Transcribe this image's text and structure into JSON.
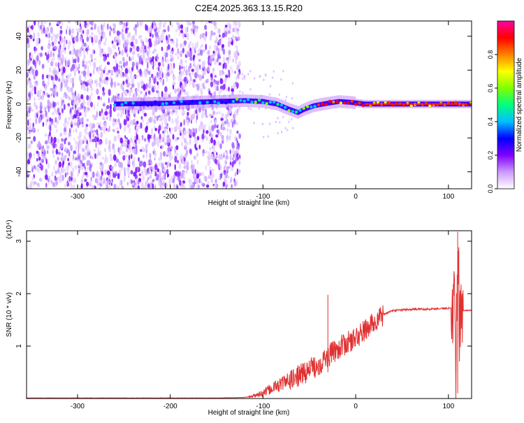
{
  "title": "C2E4.2025.363.13.15.R20",
  "chart_data": [
    {
      "type": "heatmap",
      "name": "spectrogram",
      "xlabel": "Height of straight line (km)",
      "ylabel": "Frequency (Hz)",
      "xlim": [
        -355,
        125
      ],
      "ylim": [
        -50,
        49
      ],
      "xticks": [
        -300,
        -200,
        -100,
        0,
        100
      ],
      "xtick_labels": [
        "-300",
        "-200",
        "-100",
        "0",
        "100"
      ],
      "yticks": [
        -40,
        -20,
        0,
        20,
        40
      ],
      "ytick_labels": [
        "-40",
        "-20",
        "0",
        "20",
        "40"
      ],
      "colorbar": {
        "label": "Normalized spectral amplitude",
        "range": [
          0,
          1
        ],
        "ticks": [
          0.0,
          0.2,
          0.4,
          0.6,
          0.8
        ],
        "tick_labels": [
          "0.0",
          "0.2",
          "0.4",
          "0.6",
          "0.8"
        ],
        "colormap": [
          "#ffffff",
          "#cc99ff",
          "#8000ff",
          "#0000ff",
          "#00bfff",
          "#00ff80",
          "#80ff00",
          "#ffff00",
          "#ff8000",
          "#ff0000",
          "#ff00a0"
        ]
      },
      "noise_region": {
        "x_from": -355,
        "x_to": -125
      },
      "ridge": [
        {
          "x": -260,
          "f": 0
        },
        {
          "x": -200,
          "f": 0.5
        },
        {
          "x": -150,
          "f": 1.5
        },
        {
          "x": -120,
          "f": 2
        },
        {
          "x": -100,
          "f": 1.5
        },
        {
          "x": -85,
          "f": 0
        },
        {
          "x": -72,
          "f": -3
        },
        {
          "x": -62,
          "f": -5
        },
        {
          "x": -55,
          "f": -3
        },
        {
          "x": -45,
          "f": -1
        },
        {
          "x": -30,
          "f": 0.5
        },
        {
          "x": -18,
          "f": 1.5
        },
        {
          "x": -5,
          "f": 1
        },
        {
          "x": 10,
          "f": 0
        },
        {
          "x": 50,
          "f": 0
        },
        {
          "x": 125,
          "f": 0
        }
      ]
    },
    {
      "type": "line",
      "name": "snr",
      "xlabel": "Height of straight line (km)",
      "ylabel": "SNR (10 * v/v)",
      "multiplier": "(x10⁴)",
      "xlim": [
        -355,
        125
      ],
      "ylim": [
        0,
        3.2
      ],
      "xticks": [
        -300,
        -200,
        -100,
        0,
        100
      ],
      "xtick_labels": [
        "-300",
        "-200",
        "-100",
        "0",
        "100"
      ],
      "yticks": [
        1,
        2,
        3
      ],
      "ytick_labels": [
        "1",
        "2",
        "3"
      ],
      "line_color": "#e03030",
      "series": [
        {
          "name": "SNR",
          "x": [
            -355,
            -300,
            -200,
            -150,
            -120,
            -110,
            -100,
            -90,
            -80,
            -70,
            -60,
            -50,
            -40,
            -30,
            -20,
            -10,
            0,
            10,
            20,
            30,
            40,
            60,
            80,
            100,
            104,
            106,
            108,
            110,
            112,
            115,
            125
          ],
          "y": [
            0.01,
            0.01,
            0.01,
            0.01,
            0.02,
            0.05,
            0.1,
            0.2,
            0.28,
            0.35,
            0.45,
            0.55,
            0.65,
            0.8,
            0.95,
            1.05,
            1.15,
            1.3,
            1.45,
            1.6,
            1.68,
            1.7,
            1.71,
            1.72,
            1.75,
            2.4,
            0.2,
            3.1,
            1.5,
            1.68,
            1.68
          ]
        }
      ]
    }
  ]
}
